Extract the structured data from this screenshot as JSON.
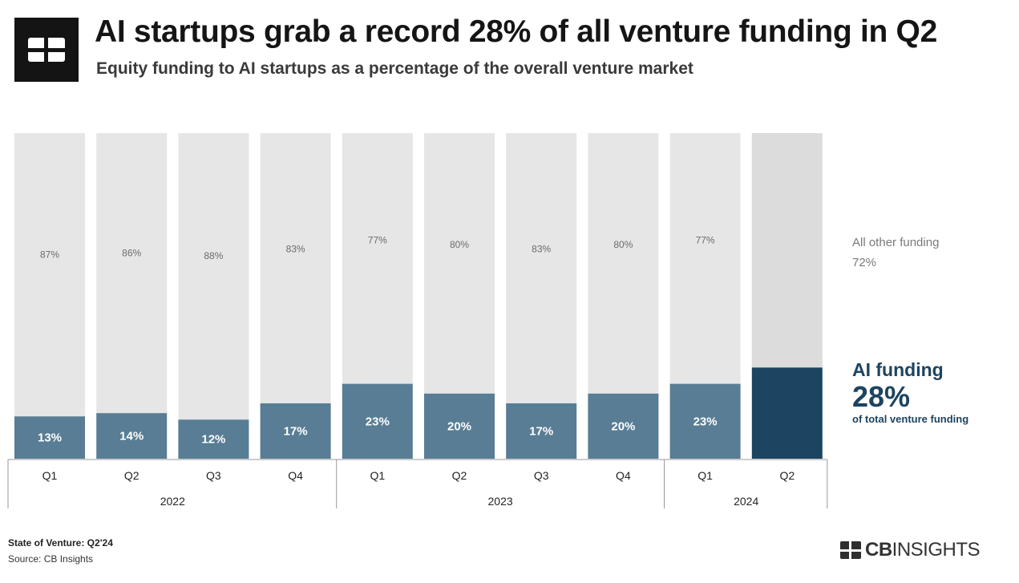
{
  "header": {
    "title": "AI startups grab a record 28% of all venture funding in Q2",
    "subtitle": "Equity funding to AI startups as a percentage of the overall venture market",
    "logo_icon": "cb-insights-logo-icon"
  },
  "chart_data": {
    "type": "bar",
    "stacked": true,
    "categories": [
      "Q1",
      "Q2",
      "Q3",
      "Q4",
      "Q1",
      "Q2",
      "Q3",
      "Q4",
      "Q1",
      "Q2"
    ],
    "year_groups": [
      {
        "label": "2022",
        "count": 4
      },
      {
        "label": "2023",
        "count": 4
      },
      {
        "label": "2024",
        "count": 2
      }
    ],
    "series": [
      {
        "name": "AI funding",
        "values": [
          13,
          14,
          12,
          17,
          23,
          20,
          17,
          20,
          23,
          28
        ],
        "color": "#587d94",
        "highlight_color": "#1d4460"
      },
      {
        "name": "All other funding",
        "values": [
          87,
          86,
          88,
          83,
          77,
          80,
          83,
          80,
          77,
          72
        ],
        "color": "#e6e6e6"
      }
    ],
    "ai_labels": [
      "13%",
      "14%",
      "12%",
      "17%",
      "23%",
      "20%",
      "17%",
      "20%",
      "23%",
      ""
    ],
    "other_labels": [
      "87%",
      "86%",
      "88%",
      "83%",
      "77%",
      "80%",
      "83%",
      "80%",
      "77%",
      ""
    ],
    "ylim": [
      0,
      100
    ],
    "grid": false
  },
  "annotations": {
    "other_label": "All other funding",
    "other_value": "72%",
    "ai_label": "AI funding",
    "ai_value": "28%",
    "ai_sub": "of total venture funding"
  },
  "footer": {
    "report": "State of Venture: Q2'24",
    "source": "Source: CB Insights",
    "brand_bold": "CB",
    "brand_rest": "INSIGHTS"
  }
}
